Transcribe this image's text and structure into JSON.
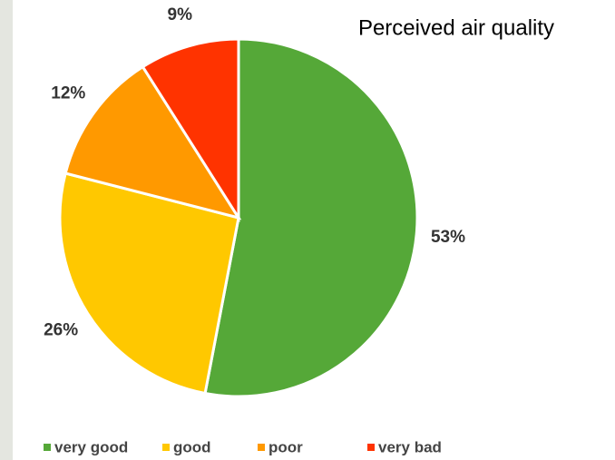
{
  "chart_data": {
    "type": "pie",
    "title": "Perceived air quality",
    "categories": [
      "very good",
      "good",
      "poor",
      "very bad"
    ],
    "values": [
      53,
      26,
      12,
      9
    ],
    "value_labels": [
      "53%",
      "26%",
      "12%",
      "9%"
    ],
    "colors": [
      "#55a838",
      "#ffc800",
      "#ff9900",
      "#ff3300"
    ],
    "legend": "bottom"
  }
}
